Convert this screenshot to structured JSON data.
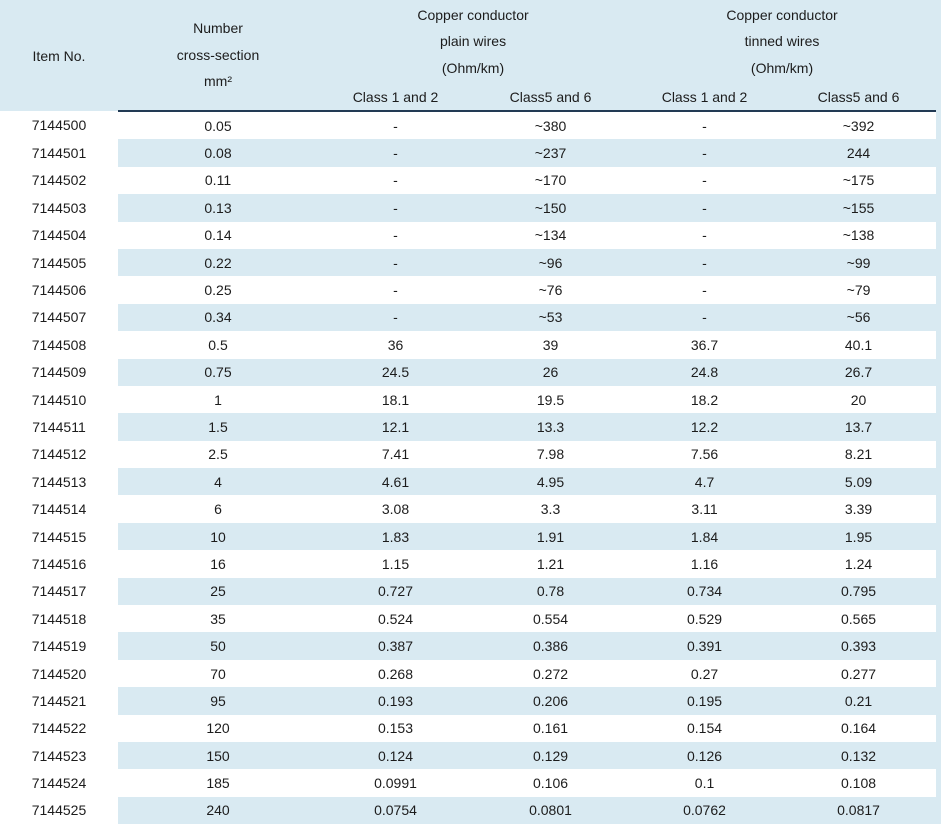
{
  "table": {
    "header": {
      "item_no": "Item No.",
      "cross_section": [
        "Number",
        "cross-section",
        "mm²"
      ],
      "plain_group": [
        "Copper conductor",
        "plain wires",
        "(Ohm/km)"
      ],
      "tinned_group": [
        "Copper conductor",
        "tinned wires",
        "(Ohm/km)"
      ],
      "subheaders": [
        "Class 1 and 2",
        "Class5 and 6",
        "Class 1 and 2",
        "Class5 and 6"
      ]
    },
    "rows": [
      [
        "7144500",
        "0.05",
        "-",
        "~380",
        "-",
        "~392"
      ],
      [
        "7144501",
        "0.08",
        "-",
        "~237",
        "-",
        "244"
      ],
      [
        "7144502",
        "0.11",
        "-",
        "~170",
        "-",
        "~175"
      ],
      [
        "7144503",
        "0.13",
        "-",
        "~150",
        "-",
        "~155"
      ],
      [
        "7144504",
        "0.14",
        "-",
        "~134",
        "-",
        "~138"
      ],
      [
        "7144505",
        "0.22",
        "-",
        "~96",
        "-",
        "~99"
      ],
      [
        "7144506",
        "0.25",
        "-",
        "~76",
        "-",
        "~79"
      ],
      [
        "7144507",
        "0.34",
        "-",
        "~53",
        "-",
        "~56"
      ],
      [
        "7144508",
        "0.5",
        "36",
        "39",
        "36.7",
        "40.1"
      ],
      [
        "7144509",
        "0.75",
        "24.5",
        "26",
        "24.8",
        "26.7"
      ],
      [
        "7144510",
        "1",
        "18.1",
        "19.5",
        "18.2",
        "20"
      ],
      [
        "7144511",
        "1.5",
        "12.1",
        "13.3",
        "12.2",
        "13.7"
      ],
      [
        "7144512",
        "2.5",
        "7.41",
        "7.98",
        "7.56",
        "8.21"
      ],
      [
        "7144513",
        "4",
        "4.61",
        "4.95",
        "4.7",
        "5.09"
      ],
      [
        "7144514",
        "6",
        "3.08",
        "3.3",
        "3.11",
        "3.39"
      ],
      [
        "7144515",
        "10",
        "1.83",
        "1.91",
        "1.84",
        "1.95"
      ],
      [
        "7144516",
        "16",
        "1.15",
        "1.21",
        "1.16",
        "1.24"
      ],
      [
        "7144517",
        "25",
        "0.727",
        "0.78",
        "0.734",
        "0.795"
      ],
      [
        "7144518",
        "35",
        "0.524",
        "0.554",
        "0.529",
        "0.565"
      ],
      [
        "7144519",
        "50",
        "0.387",
        "0.386",
        "0.391",
        "0.393"
      ],
      [
        "7144520",
        "70",
        "0.268",
        "0.272",
        "0.27",
        "0.277"
      ],
      [
        "7144521",
        "95",
        "0.193",
        "0.206",
        "0.195",
        "0.21"
      ],
      [
        "7144522",
        "120",
        "0.153",
        "0.161",
        "0.154",
        "0.164"
      ],
      [
        "7144523",
        "150",
        "0.124",
        "0.129",
        "0.126",
        "0.132"
      ],
      [
        "7144524",
        "185",
        "0.0991",
        "0.106",
        "0.1",
        "0.108"
      ],
      [
        "7144525",
        "240",
        "0.0754",
        "0.0801",
        "0.0762",
        "0.0817"
      ]
    ],
    "colors": {
      "stripe": "#d9eaf2",
      "header_rule": "#223a54",
      "row_base": "#ffffff",
      "text": "#1c1c1c"
    }
  }
}
